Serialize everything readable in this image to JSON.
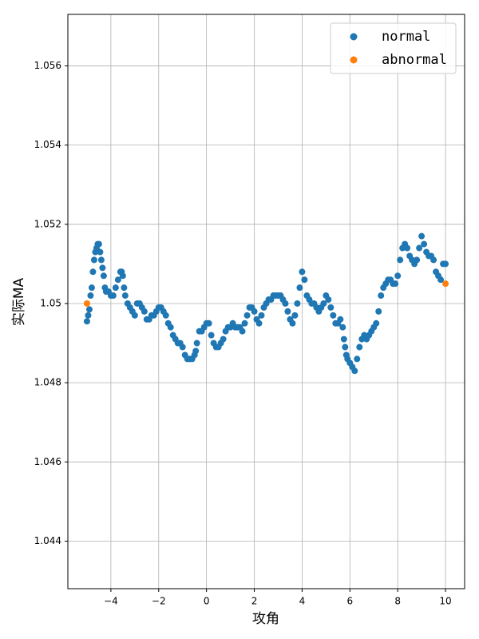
{
  "chart_data": {
    "type": "scatter",
    "xlabel": "攻角",
    "ylabel": "实际MA",
    "xlim": [
      -5.8,
      10.8
    ],
    "ylim": [
      1.0428,
      1.0573
    ],
    "xticks": [
      {
        "value": -4,
        "label": "−4"
      },
      {
        "value": -2,
        "label": "−2"
      },
      0,
      2,
      4,
      6,
      8,
      10
    ],
    "yticks": [
      1.044,
      1.046,
      1.048,
      1.05,
      1.052,
      1.054,
      1.056
    ],
    "grid": true,
    "legend": "upper right",
    "series": [
      {
        "name": "normal",
        "color": "#1f77b4",
        "x": [
          -5.0,
          -4.95,
          -4.9,
          -4.85,
          -4.8,
          -4.75,
          -4.7,
          -4.65,
          -4.6,
          -4.55,
          -4.5,
          -4.45,
          -4.4,
          -4.35,
          -4.3,
          -4.25,
          -4.2,
          -4.1,
          -4.0,
          -3.9,
          -3.8,
          -3.7,
          -3.6,
          -3.55,
          -3.5,
          -3.45,
          -3.4,
          -3.3,
          -3.2,
          -3.1,
          -3.0,
          -2.9,
          -2.8,
          -2.7,
          -2.6,
          -2.5,
          -2.4,
          -2.3,
          -2.2,
          -2.1,
          -2.0,
          -1.9,
          -1.8,
          -1.7,
          -1.6,
          -1.5,
          -1.4,
          -1.3,
          -1.2,
          -1.1,
          -1.0,
          -0.9,
          -0.8,
          -0.7,
          -0.6,
          -0.5,
          -0.45,
          -0.4,
          -0.3,
          -0.2,
          -0.1,
          0.0,
          0.1,
          0.2,
          0.3,
          0.4,
          0.5,
          0.6,
          0.7,
          0.8,
          0.9,
          1.0,
          1.1,
          1.2,
          1.3,
          1.4,
          1.5,
          1.6,
          1.7,
          1.8,
          1.9,
          2.0,
          2.1,
          2.2,
          2.3,
          2.4,
          2.5,
          2.6,
          2.7,
          2.8,
          2.9,
          3.0,
          3.1,
          3.2,
          3.3,
          3.4,
          3.5,
          3.6,
          3.7,
          3.8,
          3.9,
          4.0,
          4.1,
          4.2,
          4.3,
          4.4,
          4.5,
          4.6,
          4.7,
          4.8,
          4.9,
          5.0,
          5.1,
          5.2,
          5.3,
          5.4,
          5.5,
          5.6,
          5.7,
          5.75,
          5.8,
          5.85,
          5.9,
          6.0,
          6.1,
          6.2,
          6.3,
          6.4,
          6.5,
          6.6,
          6.7,
          6.8,
          6.9,
          7.0,
          7.1,
          7.2,
          7.3,
          7.4,
          7.5,
          7.6,
          7.7,
          7.8,
          7.9,
          8.0,
          8.1,
          8.2,
          8.3,
          8.4,
          8.5,
          8.6,
          8.7,
          8.8,
          8.9,
          9.0,
          9.1,
          9.2,
          9.3,
          9.4,
          9.5,
          9.6,
          9.7,
          9.8,
          9.9,
          10.0
        ],
        "values": [
          1.04955,
          1.0497,
          1.04985,
          1.0502,
          1.0504,
          1.0508,
          1.0511,
          1.0513,
          1.0514,
          1.0515,
          1.0515,
          1.0513,
          1.0511,
          1.0509,
          1.0507,
          1.0504,
          1.0503,
          1.0503,
          1.0502,
          1.0502,
          1.0504,
          1.0506,
          1.0508,
          1.0508,
          1.0507,
          1.0504,
          1.0502,
          1.05,
          1.0499,
          1.0498,
          1.0497,
          1.05,
          1.05,
          1.0499,
          1.0498,
          1.0496,
          1.0496,
          1.0497,
          1.0497,
          1.0498,
          1.0499,
          1.0499,
          1.0498,
          1.0497,
          1.0495,
          1.0494,
          1.0492,
          1.0491,
          1.049,
          1.049,
          1.0489,
          1.0487,
          1.0486,
          1.0486,
          1.0486,
          1.0487,
          1.0488,
          1.049,
          1.0493,
          1.0493,
          1.0494,
          1.0495,
          1.0495,
          1.0492,
          1.049,
          1.0489,
          1.0489,
          1.049,
          1.0491,
          1.0493,
          1.0494,
          1.0494,
          1.0495,
          1.0494,
          1.0494,
          1.0494,
          1.0493,
          1.0495,
          1.0497,
          1.0499,
          1.0499,
          1.0498,
          1.0496,
          1.0495,
          1.0497,
          1.0499,
          1.05,
          1.0501,
          1.0501,
          1.0502,
          1.0502,
          1.0502,
          1.0502,
          1.0501,
          1.05,
          1.0498,
          1.0496,
          1.0495,
          1.0497,
          1.05,
          1.0504,
          1.0508,
          1.0506,
          1.0502,
          1.0501,
          1.05,
          1.05,
          1.0499,
          1.0498,
          1.0499,
          1.05,
          1.0502,
          1.0501,
          1.0499,
          1.0497,
          1.0495,
          1.0495,
          1.0496,
          1.0494,
          1.0491,
          1.0489,
          1.0487,
          1.0486,
          1.0485,
          1.0484,
          1.0483,
          1.0486,
          1.0489,
          1.0491,
          1.0492,
          1.0491,
          1.0492,
          1.0493,
          1.0494,
          1.0495,
          1.0498,
          1.0502,
          1.0504,
          1.0505,
          1.0506,
          1.0506,
          1.0505,
          1.0505,
          1.0507,
          1.0511,
          1.0514,
          1.0515,
          1.0514,
          1.0512,
          1.0511,
          1.051,
          1.0511,
          1.0514,
          1.0517,
          1.0515,
          1.0513,
          1.0512,
          1.0512,
          1.0511,
          1.0508,
          1.0507,
          1.0506,
          1.051,
          1.051
        ]
      },
      {
        "name": "abnormal",
        "color": "#ff7f0e",
        "x": [
          -5.0,
          10.0
        ],
        "values": [
          1.05,
          1.0505
        ]
      }
    ]
  }
}
